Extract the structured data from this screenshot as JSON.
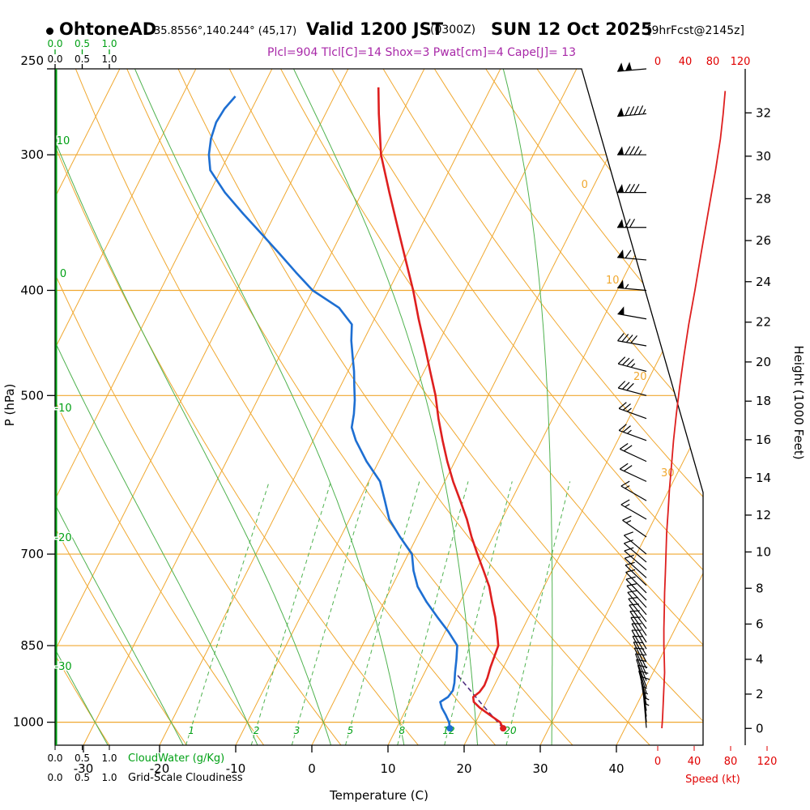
{
  "header": {
    "station": "OhtoneAD",
    "coords": "35.8556°,140.244° (45,17)",
    "valid_prefix": "Valid 1200 JST",
    "valid_z": "(0300Z)",
    "valid_date": "SUN 12 Oct 2025",
    "fcst": "[9hrFcst@2145z]",
    "params": "Plcl=904 Tlcl[C]=14 Shox=3 Pwat[cm]=4 Cape[J]= 13"
  },
  "axes": {
    "pressure": {
      "label": "P (hPa)",
      "ticks": [
        250,
        300,
        400,
        500,
        700,
        850,
        1000
      ]
    },
    "temperature": {
      "label": "Temperature (C)",
      "ticks": [
        -30,
        -20,
        -10,
        0,
        10,
        20,
        30,
        40
      ]
    },
    "height": {
      "label": "Height (1000 Feet)",
      "ticks": [
        0,
        2,
        4,
        6,
        8,
        10,
        12,
        14,
        16,
        18,
        20,
        22,
        24,
        26,
        28,
        30,
        32
      ]
    },
    "speed": {
      "label": "Speed (kt)",
      "ticks": [
        0,
        40,
        80,
        120
      ]
    },
    "cloudwater": {
      "label": "CloudWater (g/Kg)",
      "ticks": [
        "0.0",
        "0.5",
        "1.0"
      ]
    },
    "cloudiness": {
      "label": "Grid-Scale Cloudiness",
      "ticks": [
        "0.0",
        "0.5",
        "1.0"
      ]
    }
  },
  "grid": {
    "isotherms": [
      -100,
      -90,
      -80,
      -70,
      -60,
      -50,
      -40,
      -30,
      -20,
      -10,
      0,
      10,
      20,
      30,
      40
    ],
    "isotherm_labels": [
      0,
      10,
      20,
      30
    ],
    "dry_adiabats": [
      -40,
      -30,
      -20,
      -10,
      0,
      10,
      20,
      30,
      40,
      50,
      60,
      70,
      80,
      90,
      100,
      110,
      120,
      130,
      140,
      150
    ],
    "moist_adiabats": [
      -30,
      -20,
      -10,
      0,
      10,
      20,
      30
    ],
    "moist_adiabat_labels": [
      10,
      0,
      -10,
      -20,
      -30
    ],
    "mixing_ratios": [
      1,
      2,
      3,
      5,
      8,
      12,
      20
    ]
  },
  "colors": {
    "grid_orange": "#F0A830",
    "green_strong": "#00A014",
    "green_line": "#4FB24F",
    "temperature_red": "#DE1F1F",
    "dewpoint_blue": "#1E6FD2",
    "speed_red": "#E00000",
    "params_magenta": "#A828A8",
    "parcel_purple": "#503080"
  },
  "chart_data": {
    "type": "line",
    "variant": "skew-t-log-p-sounding",
    "pressure_hpa_range": [
      1050,
      250
    ],
    "surface_temp_axis_c": [
      -30,
      40
    ],
    "temperature_c": [
      [
        1013,
        24.0
      ],
      [
        1000,
        23.2
      ],
      [
        985,
        21.4
      ],
      [
        970,
        19.6
      ],
      [
        958,
        18.4
      ],
      [
        948,
        18.0
      ],
      [
        938,
        18.5
      ],
      [
        925,
        18.7
      ],
      [
        910,
        18.6
      ],
      [
        890,
        18.3
      ],
      [
        870,
        18.1
      ],
      [
        850,
        17.9
      ],
      [
        825,
        16.8
      ],
      [
        800,
        15.6
      ],
      [
        775,
        14.2
      ],
      [
        750,
        12.8
      ],
      [
        725,
        11.0
      ],
      [
        700,
        9.1
      ],
      [
        675,
        7.2
      ],
      [
        650,
        5.4
      ],
      [
        625,
        3.3
      ],
      [
        600,
        1.1
      ],
      [
        575,
        -1.0
      ],
      [
        550,
        -3.0
      ],
      [
        525,
        -5.0
      ],
      [
        500,
        -6.9
      ],
      [
        475,
        -9.2
      ],
      [
        450,
        -11.6
      ],
      [
        425,
        -14.2
      ],
      [
        400,
        -16.8
      ],
      [
        375,
        -19.8
      ],
      [
        350,
        -23.0
      ],
      [
        325,
        -26.4
      ],
      [
        300,
        -30.0
      ],
      [
        275,
        -33.0
      ],
      [
        260,
        -34.8
      ]
    ],
    "dewpoint_c": [
      [
        1013,
        17.0
      ],
      [
        1000,
        16.5
      ],
      [
        985,
        15.6
      ],
      [
        970,
        14.6
      ],
      [
        958,
        14.0
      ],
      [
        948,
        14.7
      ],
      [
        935,
        14.9
      ],
      [
        920,
        14.6
      ],
      [
        900,
        14.0
      ],
      [
        875,
        13.3
      ],
      [
        850,
        12.5
      ],
      [
        825,
        10.4
      ],
      [
        800,
        8.0
      ],
      [
        775,
        5.6
      ],
      [
        750,
        3.4
      ],
      [
        725,
        1.8
      ],
      [
        700,
        0.5
      ],
      [
        675,
        -2.2
      ],
      [
        650,
        -4.8
      ],
      [
        625,
        -6.6
      ],
      [
        600,
        -8.5
      ],
      [
        575,
        -11.6
      ],
      [
        550,
        -14.4
      ],
      [
        535,
        -15.8
      ],
      [
        520,
        -16.4
      ],
      [
        505,
        -17.2
      ],
      [
        490,
        -18.2
      ],
      [
        475,
        -19.2
      ],
      [
        460,
        -20.4
      ],
      [
        445,
        -21.6
      ],
      [
        430,
        -22.6
      ],
      [
        415,
        -25.4
      ],
      [
        400,
        -30.0
      ],
      [
        385,
        -33.4
      ],
      [
        370,
        -36.8
      ],
      [
        355,
        -40.4
      ],
      [
        340,
        -44.2
      ],
      [
        325,
        -48.0
      ],
      [
        310,
        -51.4
      ],
      [
        300,
        -52.6
      ],
      [
        290,
        -53.4
      ],
      [
        280,
        -53.8
      ],
      [
        272,
        -53.6
      ],
      [
        265,
        -53.0
      ]
    ],
    "wind_speed_kt": [
      [
        1013,
        6
      ],
      [
        990,
        7
      ],
      [
        960,
        8
      ],
      [
        930,
        9
      ],
      [
        900,
        10
      ],
      [
        875,
        9.5
      ],
      [
        850,
        9
      ],
      [
        820,
        9
      ],
      [
        790,
        9.5
      ],
      [
        760,
        10
      ],
      [
        730,
        11
      ],
      [
        700,
        12
      ],
      [
        670,
        13
      ],
      [
        640,
        15
      ],
      [
        610,
        17
      ],
      [
        580,
        20
      ],
      [
        550,
        23
      ],
      [
        520,
        27
      ],
      [
        490,
        32
      ],
      [
        460,
        38
      ],
      [
        430,
        45
      ],
      [
        400,
        54
      ],
      [
        370,
        63
      ],
      [
        340,
        73
      ],
      [
        310,
        84
      ],
      [
        290,
        91
      ],
      [
        275,
        95
      ],
      [
        262,
        98
      ]
    ],
    "winds_p_dir_kt": [
      [
        1012,
        355,
        6
      ],
      [
        1000,
        355,
        6
      ],
      [
        988,
        352,
        7
      ],
      [
        976,
        350,
        7
      ],
      [
        964,
        348,
        8
      ],
      [
        952,
        345,
        8
      ],
      [
        940,
        343,
        9
      ],
      [
        928,
        340,
        9
      ],
      [
        916,
        338,
        10
      ],
      [
        904,
        336,
        10
      ],
      [
        892,
        334,
        10
      ],
      [
        880,
        332,
        9
      ],
      [
        868,
        330,
        9
      ],
      [
        856,
        330,
        9
      ],
      [
        844,
        328,
        9
      ],
      [
        832,
        326,
        9
      ],
      [
        820,
        324,
        9
      ],
      [
        808,
        322,
        9
      ],
      [
        796,
        320,
        9
      ],
      [
        784,
        318,
        9
      ],
      [
        772,
        316,
        9
      ],
      [
        760,
        315,
        10
      ],
      [
        748,
        314,
        10
      ],
      [
        736,
        312,
        10
      ],
      [
        724,
        311,
        11
      ],
      [
        712,
        310,
        11
      ],
      [
        700,
        310,
        12
      ],
      [
        675,
        305,
        13
      ],
      [
        650,
        300,
        14
      ],
      [
        625,
        300,
        16
      ],
      [
        600,
        295,
        18
      ],
      [
        575,
        295,
        20
      ],
      [
        550,
        290,
        23
      ],
      [
        525,
        290,
        27
      ],
      [
        500,
        285,
        31
      ],
      [
        475,
        285,
        36
      ],
      [
        450,
        280,
        42
      ],
      [
        425,
        280,
        48
      ],
      [
        400,
        275,
        54
      ],
      [
        375,
        275,
        62
      ],
      [
        350,
        270,
        71
      ],
      [
        325,
        270,
        79
      ],
      [
        300,
        270,
        87
      ],
      [
        275,
        265,
        95
      ],
      [
        250,
        265,
        100
      ]
    ],
    "parcel_path": [
      [
        1013,
        24.0
      ],
      [
        960,
        19.4
      ],
      [
        904,
        14.4
      ]
    ],
    "surface_temp_marker": {
      "p": 1013,
      "t": 24.0
    },
    "surface_dewpoint_marker": {
      "p": 1013,
      "t": 17.0
    }
  }
}
